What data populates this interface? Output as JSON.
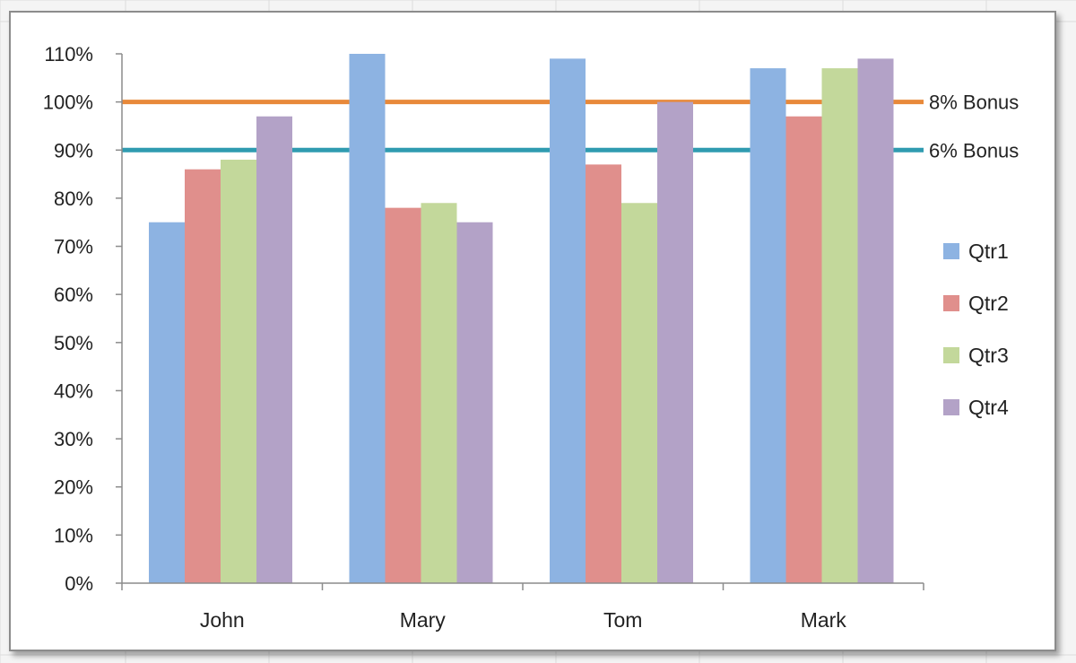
{
  "chart_data": {
    "type": "bar",
    "categories": [
      "John",
      "Mary",
      "Tom",
      "Mark"
    ],
    "series": [
      {
        "name": "Qtr1",
        "color": "#8db3e2",
        "values": [
          0.75,
          1.1,
          1.09,
          1.07
        ]
      },
      {
        "name": "Qtr2",
        "color": "#e08f8c",
        "values": [
          0.86,
          0.78,
          0.87,
          0.97
        ]
      },
      {
        "name": "Qtr3",
        "color": "#c3d89b",
        "values": [
          0.88,
          0.79,
          0.79,
          1.07
        ]
      },
      {
        "name": "Qtr4",
        "color": "#b3a2c7",
        "values": [
          0.97,
          0.75,
          1.0,
          1.09
        ]
      }
    ],
    "reference_lines": [
      {
        "name": "8% Bonus",
        "value": 1.0,
        "color": "#e8893a"
      },
      {
        "name": "6% Bonus",
        "value": 0.9,
        "color": "#2f9bb0"
      }
    ],
    "ylim": [
      0,
      1.1
    ],
    "yticks": [
      0,
      0.1,
      0.2,
      0.3,
      0.4,
      0.5,
      0.6,
      0.7,
      0.8,
      0.9,
      1.0,
      1.1
    ],
    "ytick_labels": [
      "0%",
      "10%",
      "20%",
      "30%",
      "40%",
      "50%",
      "60%",
      "70%",
      "80%",
      "90%",
      "100%",
      "110%"
    ],
    "title": "",
    "xlabel": "",
    "ylabel": "",
    "grid": false,
    "legend_position": "right"
  }
}
